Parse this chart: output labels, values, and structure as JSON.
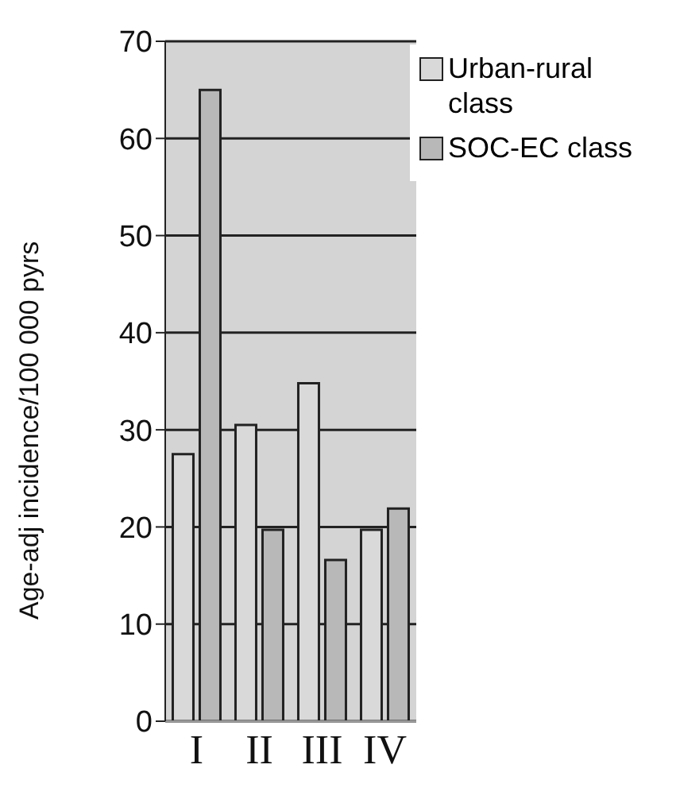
{
  "chart_data": {
    "type": "bar",
    "ylabel": "Age-adj incidence/100 000 pyrs",
    "categories": [
      "I",
      "II",
      "III",
      "IV"
    ],
    "series": [
      {
        "name": "Urban-rural class",
        "color": "#d9d9d9",
        "values": [
          27.5,
          30.5,
          34.8,
          19.7
        ]
      },
      {
        "name": "SOC-EC class",
        "color": "#b8b8b8",
        "values": [
          65,
          19.7,
          16.6,
          21.9
        ]
      }
    ],
    "ylim": [
      0,
      70
    ],
    "yticks": [
      0,
      10,
      20,
      30,
      40,
      50,
      60,
      70
    ],
    "grid": "y",
    "legend": "top right"
  }
}
